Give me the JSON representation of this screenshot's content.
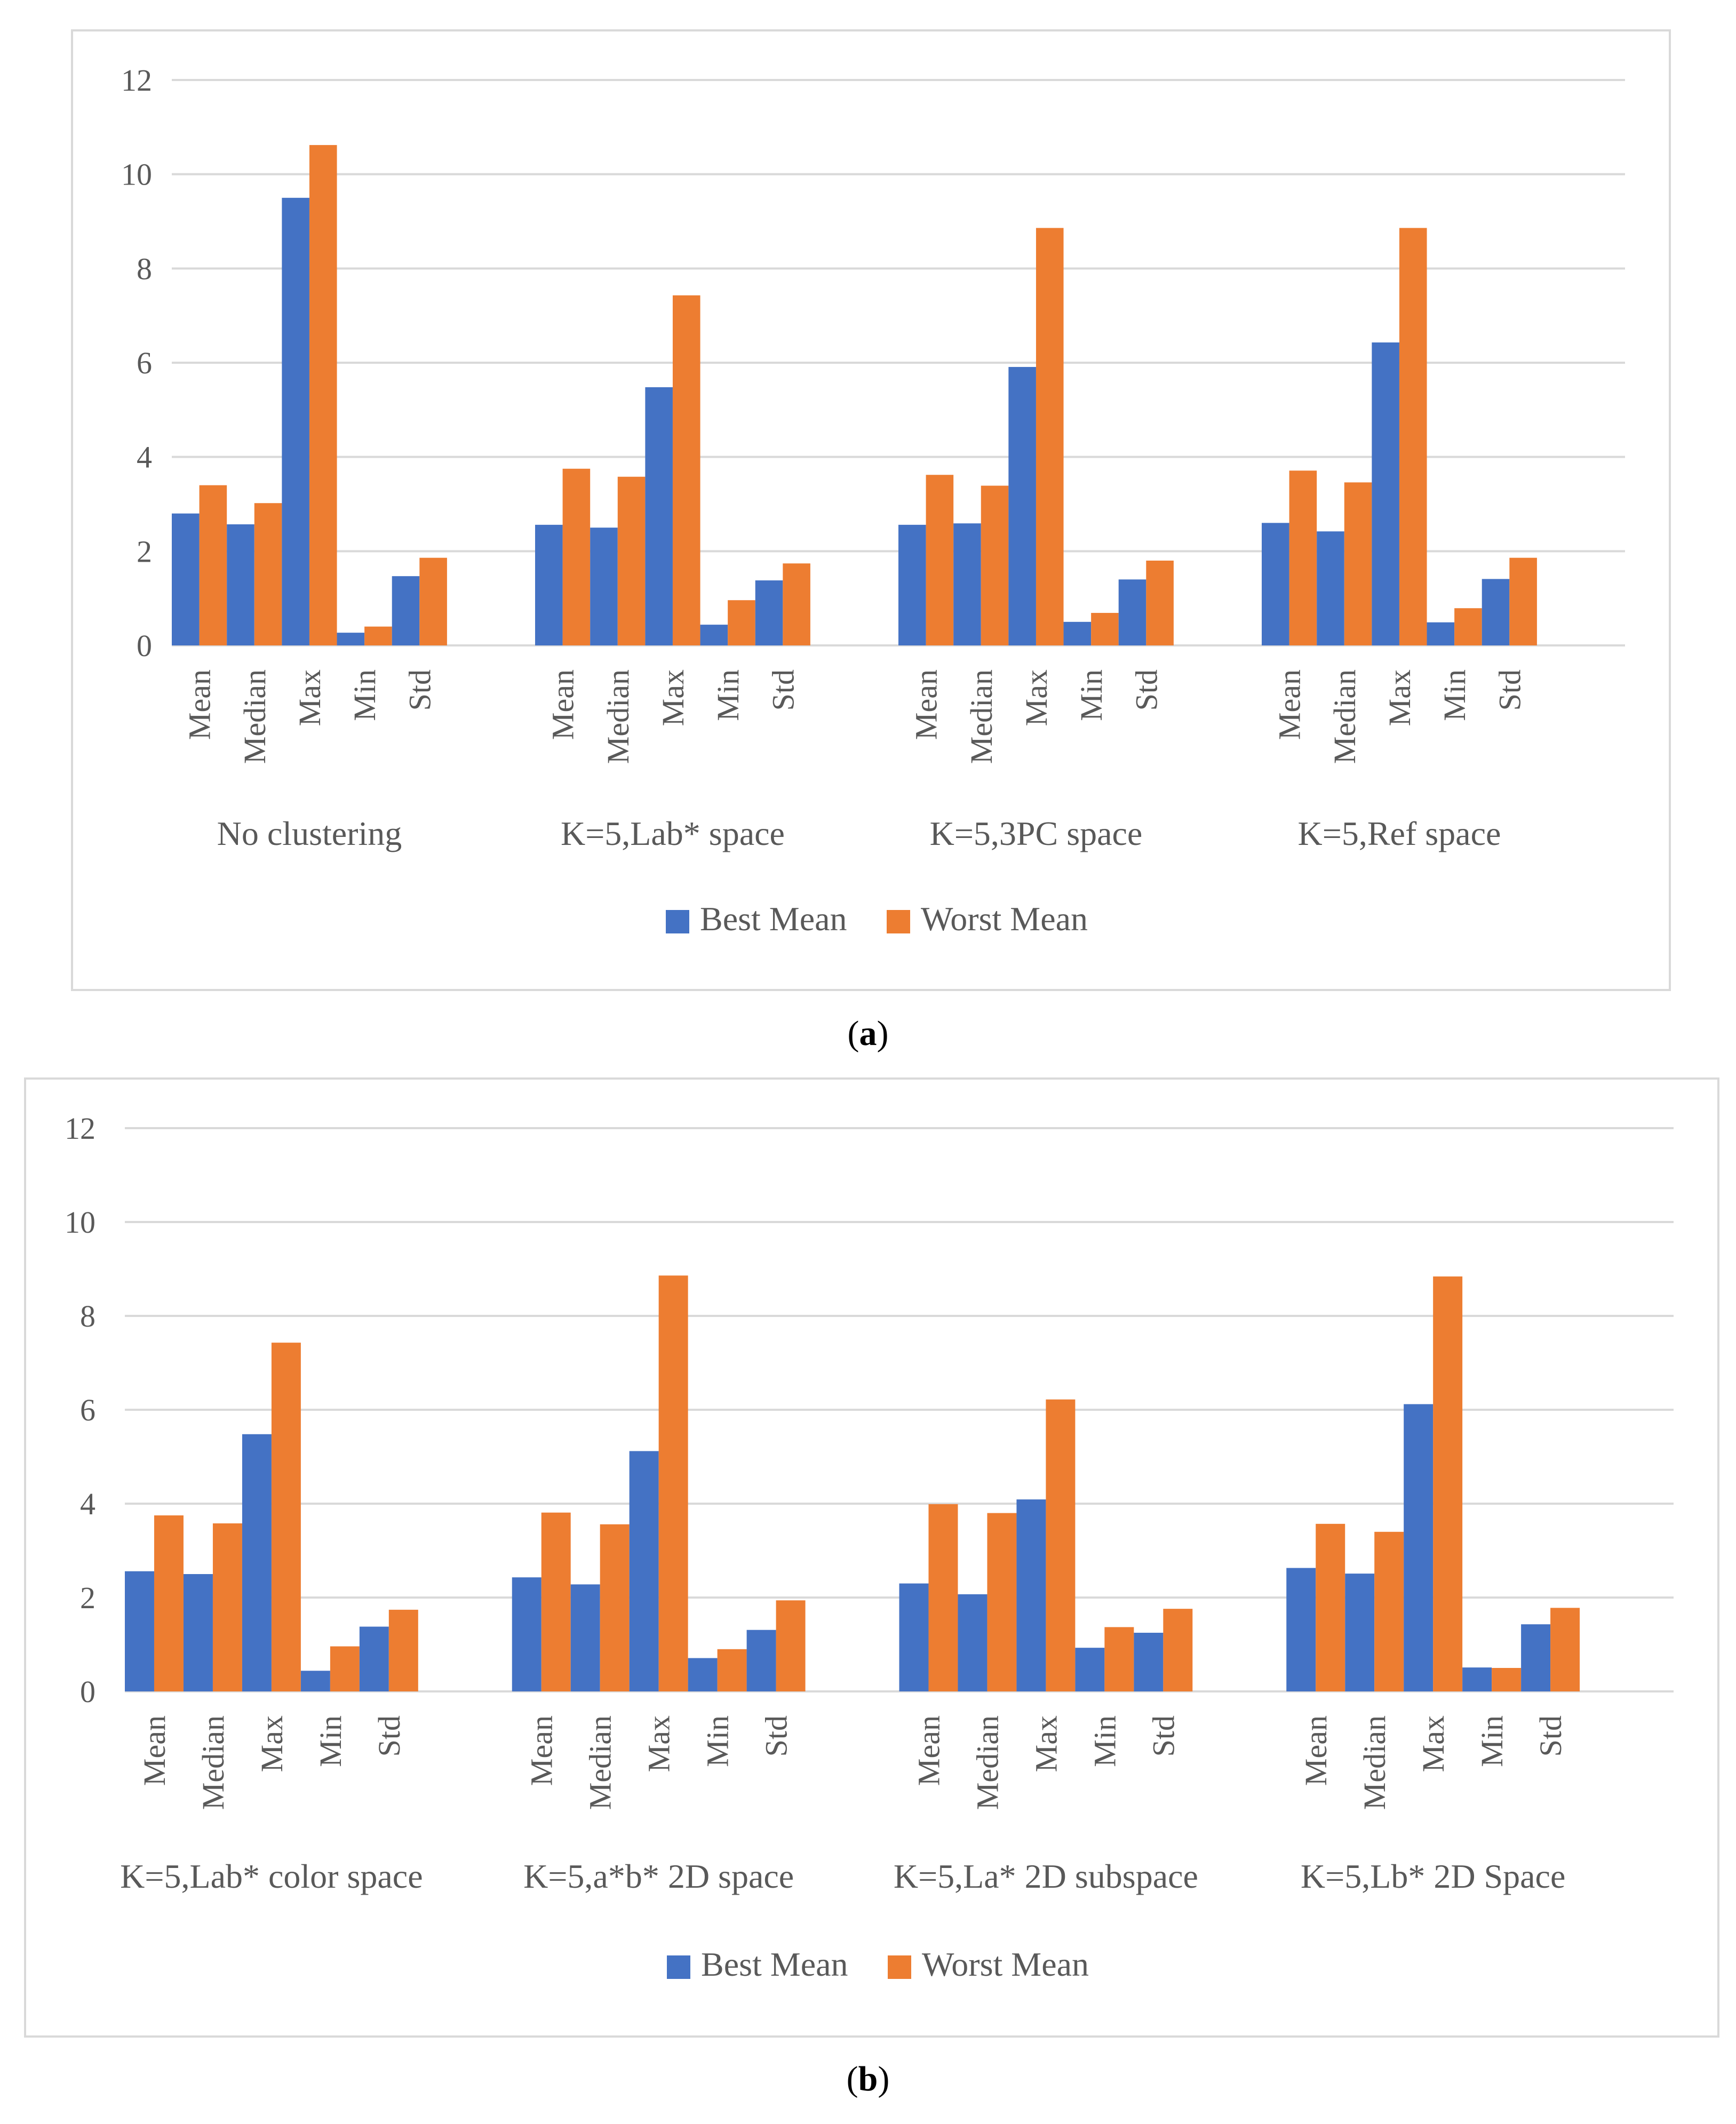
{
  "captions": {
    "a": "a",
    "b": "b"
  },
  "colors": {
    "best": "#4472c4",
    "worst": "#ed7d31",
    "grid": "#d9d9d9",
    "text": "#595959"
  },
  "chart_data": [
    {
      "id": "a",
      "type": "bar",
      "ylim": [
        0,
        12
      ],
      "yticks": [
        0,
        2,
        4,
        6,
        8,
        10,
        12
      ],
      "grid": true,
      "legend_position": "bottom",
      "categories": [
        "Mean",
        "Median",
        "Max",
        "Min",
        "Std"
      ],
      "groups": [
        {
          "label": "No clustering",
          "best": [
            2.8,
            2.57,
            9.5,
            0.27,
            1.47
          ],
          "worst": [
            3.4,
            3.02,
            10.62,
            0.4,
            1.86
          ]
        },
        {
          "label": "K=5,Lab* space",
          "best": [
            2.56,
            2.5,
            5.48,
            0.44,
            1.38
          ],
          "worst": [
            3.75,
            3.58,
            7.43,
            0.96,
            1.74
          ]
        },
        {
          "label": "K=5,3PC space",
          "best": [
            2.56,
            2.59,
            5.91,
            0.5,
            1.4
          ],
          "worst": [
            3.62,
            3.39,
            8.86,
            0.69,
            1.8
          ]
        },
        {
          "label": "K=5,Ref space",
          "best": [
            2.6,
            2.42,
            6.43,
            0.49,
            1.41
          ],
          "worst": [
            3.71,
            3.46,
            8.86,
            0.79,
            1.86
          ]
        }
      ],
      "series": [
        {
          "name": "Best Mean"
        },
        {
          "name": "Worst Mean"
        }
      ]
    },
    {
      "id": "b",
      "type": "bar",
      "ylim": [
        0,
        12
      ],
      "yticks": [
        0,
        2,
        4,
        6,
        8,
        10,
        12
      ],
      "grid": true,
      "legend_position": "bottom",
      "categories": [
        "Mean",
        "Median",
        "Max",
        "Min",
        "Std"
      ],
      "groups": [
        {
          "label": "K=5,Lab* color space",
          "best": [
            2.56,
            2.5,
            5.48,
            0.44,
            1.38
          ],
          "worst": [
            3.75,
            3.58,
            7.43,
            0.96,
            1.74
          ]
        },
        {
          "label": "K=5,a*b* 2D space",
          "best": [
            2.43,
            2.28,
            5.12,
            0.71,
            1.31
          ],
          "worst": [
            3.81,
            3.56,
            8.86,
            0.9,
            1.94
          ]
        },
        {
          "label": "K=5,La* 2D  subspace",
          "best": [
            2.3,
            2.07,
            4.09,
            0.93,
            1.25
          ],
          "worst": [
            3.99,
            3.8,
            6.22,
            1.37,
            1.76
          ]
        },
        {
          "label": "K=5,Lb* 2D  Space",
          "best": [
            2.63,
            2.51,
            6.12,
            0.51,
            1.43
          ],
          "worst": [
            3.57,
            3.4,
            8.84,
            0.5,
            1.78
          ]
        }
      ],
      "series": [
        {
          "name": "Best Mean"
        },
        {
          "name": "Worst Mean"
        }
      ]
    }
  ]
}
